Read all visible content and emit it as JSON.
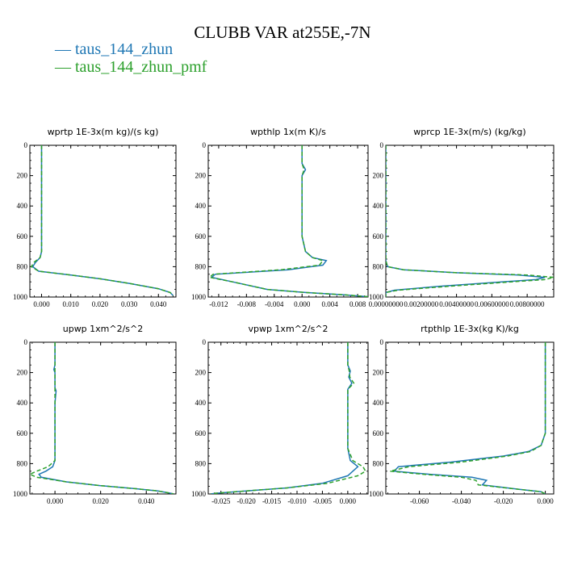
{
  "figure": {
    "title": "CLUBB VAR at255E,-7N",
    "legend": [
      {
        "label": "taus_144_zhun",
        "color": "#1f77b4",
        "dash": "solid"
      },
      {
        "label": "taus_144_zhun_pmf",
        "color": "#2ca02c",
        "dash": "dashed"
      }
    ]
  },
  "chart_data": [
    {
      "type": "line",
      "title": "wprtp  1E-3x(m kg)/(s kg)",
      "xlim": [
        -0.004,
        0.046
      ],
      "ylim": [
        1000,
        0
      ],
      "xticks": [
        0.0,
        0.01,
        0.02,
        0.03,
        0.04
      ],
      "xtick_labels": [
        "0.000",
        "0.010",
        "0.020",
        "0.030",
        "0.040"
      ],
      "yticks": [
        0,
        200,
        400,
        600,
        800,
        1000
      ],
      "series": [
        {
          "name": "taus_144_zhun",
          "x": [
            0.0,
            0.0,
            0.0,
            0.0,
            -0.0005,
            -0.002,
            -0.003,
            -0.001,
            0.01,
            0.02,
            0.03,
            0.04,
            0.044,
            0.045
          ],
          "y": [
            0,
            200,
            500,
            700,
            740,
            770,
            800,
            830,
            855,
            880,
            910,
            945,
            970,
            990
          ]
        },
        {
          "name": "taus_144_zhun_pmf",
          "x": [
            0.0,
            0.0,
            0.0,
            0.0,
            -0.0005,
            -0.0025,
            -0.0035,
            -0.001,
            0.01,
            0.02,
            0.03,
            0.04,
            0.044,
            0.045
          ],
          "y": [
            0,
            200,
            500,
            700,
            740,
            770,
            800,
            830,
            855,
            880,
            910,
            945,
            970,
            990
          ]
        }
      ]
    },
    {
      "type": "line",
      "title": "wpthlp  1x(m K)/s",
      "xlim": [
        -0.0135,
        0.0095
      ],
      "ylim": [
        1000,
        0
      ],
      "xticks": [
        -0.012,
        -0.008,
        -0.004,
        0.0,
        0.004,
        0.008
      ],
      "xtick_labels": [
        "-0.012",
        "-0.008",
        "-0.004",
        "0.000",
        "0.004",
        "0.008"
      ],
      "yticks": [
        0,
        200,
        400,
        600,
        800,
        1000
      ],
      "series": [
        {
          "name": "taus_144_zhun",
          "x": [
            0.0,
            0.0,
            0.0005,
            0.0,
            0.0,
            0.0,
            0.0005,
            0.0015,
            0.0035,
            0.003,
            -0.002,
            -0.0125,
            -0.013,
            -0.01,
            -0.005,
            0.0005,
            0.006,
            0.0095
          ],
          "y": [
            0,
            120,
            160,
            200,
            400,
            600,
            700,
            740,
            760,
            790,
            820,
            850,
            870,
            900,
            950,
            970,
            985,
            998
          ]
        },
        {
          "name": "taus_144_zhun_pmf",
          "x": [
            0.0,
            0.0,
            0.0003,
            0.0,
            0.0,
            0.0,
            0.0005,
            0.0015,
            0.003,
            0.0025,
            -0.003,
            -0.0128,
            -0.0133,
            -0.01,
            -0.005,
            0.0005,
            0.006,
            0.0095
          ],
          "y": [
            0,
            120,
            160,
            200,
            400,
            600,
            700,
            740,
            760,
            790,
            820,
            850,
            870,
            900,
            950,
            970,
            985,
            998
          ]
        }
      ]
    },
    {
      "type": "line",
      "title": "wprcp  1E-3x(m/s) (kg/kg)",
      "xlim": [
        0.0,
        0.0095
      ],
      "ylim": [
        1000,
        0
      ],
      "xticks": [
        0.0,
        0.002,
        0.004,
        0.006,
        0.008
      ],
      "xtick_labels": [
        "0.00000000",
        "0.00200000",
        "0.00400000",
        "0.00600000",
        "0.00800000"
      ],
      "yticks": [
        0,
        200,
        400,
        600,
        800,
        1000
      ],
      "series": [
        {
          "name": "taus_144_zhun",
          "x": [
            0.0,
            0.0,
            0.0,
            0.0001,
            0.001,
            0.004,
            0.0075,
            0.009,
            0.0085,
            0.006,
            0.003,
            0.0005,
            0.0,
            0.0
          ],
          "y": [
            0,
            300,
            760,
            800,
            820,
            840,
            855,
            870,
            885,
            905,
            930,
            955,
            970,
            1000
          ]
        },
        {
          "name": "taus_144_zhun_pmf",
          "x": [
            0.0,
            0.0,
            0.0,
            0.0001,
            0.001,
            0.004,
            0.008,
            0.0095,
            0.009,
            0.0065,
            0.0035,
            0.0007,
            0.0,
            0.0
          ],
          "y": [
            0,
            300,
            760,
            800,
            820,
            840,
            855,
            870,
            885,
            905,
            930,
            955,
            970,
            1000
          ]
        }
      ]
    },
    {
      "type": "line",
      "title": "upwp  1xm^2/s^2",
      "xlim": [
        -0.011,
        0.053
      ],
      "ylim": [
        1000,
        0
      ],
      "xticks": [
        0.0,
        0.02,
        0.04
      ],
      "xtick_labels": [
        "0.000",
        "0.020",
        "0.040"
      ],
      "yticks": [
        0,
        200,
        400,
        600,
        800,
        1000
      ],
      "series": [
        {
          "name": "taus_144_zhun",
          "x": [
            0.0,
            0.0,
            -0.0005,
            0.0,
            0.0,
            0.0005,
            0.0,
            0.0,
            -0.001,
            -0.004,
            -0.007,
            -0.006,
            0.005,
            0.02,
            0.035,
            0.045,
            0.05,
            0.052
          ],
          "y": [
            0,
            150,
            180,
            200,
            300,
            320,
            400,
            780,
            820,
            850,
            870,
            890,
            920,
            945,
            965,
            980,
            993,
            1000
          ]
        },
        {
          "name": "taus_144_zhun_pmf",
          "x": [
            0.0,
            0.0,
            0.0,
            0.0,
            0.0,
            0.0,
            0.0,
            0.0,
            -0.003,
            -0.008,
            -0.011,
            -0.008,
            0.005,
            0.02,
            0.035,
            0.045,
            0.05,
            0.052
          ],
          "y": [
            0,
            150,
            180,
            200,
            300,
            320,
            400,
            780,
            820,
            850,
            870,
            890,
            920,
            945,
            965,
            980,
            993,
            1000
          ]
        }
      ]
    },
    {
      "type": "line",
      "title": "vpwp  1xm^2/s^2",
      "xlim": [
        -0.0275,
        0.004
      ],
      "ylim": [
        1000,
        0
      ],
      "xticks": [
        -0.025,
        -0.02,
        -0.015,
        -0.01,
        -0.005,
        0.0
      ],
      "xtick_labels": [
        "-0.025",
        "-0.020",
        "-0.015",
        "-0.010",
        "-0.005",
        "0.000"
      ],
      "yticks": [
        0,
        200,
        400,
        600,
        800,
        1000
      ],
      "series": [
        {
          "name": "taus_144_zhun",
          "x": [
            0.0,
            0.0,
            0.0005,
            0.0002,
            0.0008,
            0.0,
            0.0,
            0.0,
            0.0005,
            0.002,
            0.001,
            0.0,
            -0.005,
            -0.012,
            -0.02,
            -0.026,
            -0.027
          ],
          "y": [
            0,
            150,
            190,
            230,
            270,
            310,
            400,
            700,
            780,
            820,
            850,
            880,
            930,
            960,
            980,
            995,
            1000
          ]
        },
        {
          "name": "taus_144_zhun_pmf",
          "x": [
            0.0,
            0.0,
            0.0003,
            0.0004,
            0.0012,
            0.0,
            0.0,
            0.0,
            0.001,
            0.003,
            0.0035,
            0.002,
            -0.004,
            -0.012,
            -0.02,
            -0.026,
            -0.027
          ],
          "y": [
            0,
            150,
            190,
            230,
            270,
            310,
            400,
            700,
            780,
            820,
            850,
            880,
            930,
            960,
            980,
            995,
            1000
          ]
        }
      ]
    },
    {
      "type": "line",
      "title": "rtpthlp  1E-3x(kg K)/kg",
      "xlim": [
        -0.076,
        0.004
      ],
      "ylim": [
        1000,
        0
      ],
      "xticks": [
        -0.06,
        -0.04,
        -0.02,
        0.0
      ],
      "xtick_labels": [
        "-0.060",
        "-0.040",
        "-0.020",
        "0.000"
      ],
      "yticks": [
        0,
        200,
        400,
        600,
        800,
        1000
      ],
      "series": [
        {
          "name": "taus_144_zhun",
          "x": [
            0.0,
            0.0,
            0.0,
            -0.002,
            -0.008,
            -0.02,
            -0.045,
            -0.07,
            -0.072,
            -0.055,
            -0.035,
            -0.028,
            -0.03,
            -0.012,
            -0.002,
            0.0
          ],
          "y": [
            0,
            200,
            600,
            680,
            720,
            750,
            790,
            820,
            850,
            870,
            890,
            910,
            940,
            970,
            985,
            1000
          ]
        },
        {
          "name": "taus_144_zhun_pmf",
          "x": [
            0.0,
            0.0,
            0.0,
            -0.002,
            -0.007,
            -0.018,
            -0.04,
            -0.065,
            -0.074,
            -0.058,
            -0.04,
            -0.033,
            -0.032,
            -0.012,
            -0.002,
            0.0
          ],
          "y": [
            0,
            200,
            600,
            680,
            720,
            750,
            790,
            820,
            850,
            870,
            890,
            910,
            940,
            970,
            985,
            1000
          ]
        }
      ]
    }
  ]
}
